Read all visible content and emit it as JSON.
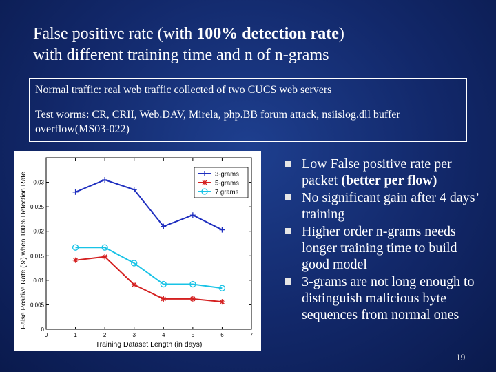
{
  "slide": {
    "title_part1": "False positive rate (with ",
    "title_bold": "100% detection rate",
    "title_part2": ")",
    "title_line2": "with different training time and n of n-grams",
    "page_number": "19"
  },
  "info_box": {
    "line1": "Normal traffic: real web traffic collected of two CUCS web servers",
    "line2": "Test worms: CR, CRII, Web.DAV, Mirela, php.BB forum attack, nsiislog.dll buffer overflow(MS03-022)"
  },
  "bullets": [
    {
      "text": "Low False positive rate per packet ",
      "bold": "(better per flow)"
    },
    {
      "text": "No significant gain after 4 days’ training",
      "bold": ""
    },
    {
      "text": "Higher order n-grams needs longer training time to build good model",
      "bold": ""
    },
    {
      "text": "3-grams are not long enough to distinguish malicious byte sequences from normal ones",
      "bold": ""
    }
  ],
  "chart_data": {
    "type": "line",
    "xlabel": "Training Dataset Length (in days)",
    "ylabel": "False Positive Rate (%) when 100% Detection Rate",
    "xlim": [
      0,
      7
    ],
    "ylim": [
      0,
      0.035
    ],
    "xticks": [
      "0",
      "1",
      "2",
      "3",
      "4",
      "5",
      "6",
      "7"
    ],
    "yticks": [
      "0",
      "0.005",
      "0.01",
      "0.015",
      "0.02",
      "0.025",
      "0.03"
    ],
    "x": [
      1,
      2,
      3,
      4,
      5,
      6
    ],
    "legend_position": "top-right",
    "grid": false,
    "series": [
      {
        "name": "3-grams",
        "color": "#1f2fbf",
        "marker": "plus",
        "values": [
          0.028,
          0.0305,
          0.0285,
          0.021,
          0.0233,
          0.0203
        ]
      },
      {
        "name": "5-grams",
        "color": "#d42020",
        "marker": "star",
        "values": [
          0.0141,
          0.0148,
          0.0091,
          0.0062,
          0.0062,
          0.0056
        ]
      },
      {
        "name": "7 grams",
        "color": "#19c3e6",
        "marker": "circle",
        "values": [
          0.0167,
          0.0167,
          0.0135,
          0.0092,
          0.0092,
          0.0084
        ]
      }
    ]
  }
}
